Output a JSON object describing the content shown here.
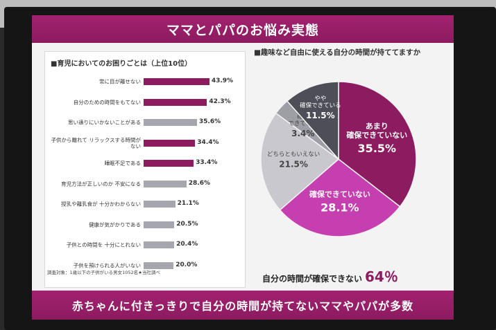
{
  "slide": {
    "title": "ママとパパのお悩み実態",
    "banner": "赤ちゃんに付きっきりで自分の時間が持てないママやパパが多数"
  },
  "left_panel": {
    "title": "■育児においてのお困りごとは（上位10位）",
    "note": "調査対象：1歳以下の子供がいる男女1052名★当社調べ"
  },
  "right_panel": {
    "title": "■趣味など自由に使える自分の時間が持ててますか",
    "summary_label": "自分の時間が確保できない",
    "summary_value": "64％"
  },
  "colors": {
    "brand": "#8c1b60",
    "magenta": "#c63fb0",
    "light_gray": "#c8c8ce",
    "mid_gray": "#9e9ea6",
    "dark_gray": "#4e4e58"
  },
  "chart_data": [
    {
      "type": "bar",
      "orientation": "horizontal",
      "title": "育児においてのお困りごとは（上位10位）",
      "categories": [
        "常に目が離せない",
        "自分のための時間をもてない",
        "思い通りにいかないことがある",
        "子供から離れて リラックスする時間がない",
        "睡眠不足である",
        "育児方法が正しいのか 不安になる",
        "授乳や離乳食が 十分かわからない",
        "健康が気がかりである",
        "子供との時間を 十分にとれない",
        "子供を預けられる人がいない"
      ],
      "values": [
        43.9,
        42.3,
        35.6,
        34.4,
        33.4,
        28.6,
        21.1,
        20.5,
        20.4,
        20.0
      ],
      "value_labels": [
        "43.9%",
        "42.3%",
        "35.6%",
        "34.4%",
        "33.4%",
        "28.6%",
        "21.1%",
        "20.5%",
        "20.4%",
        "20.0%"
      ],
      "highlight": [
        true,
        true,
        false,
        true,
        true,
        false,
        false,
        false,
        false,
        false
      ],
      "xlim": [
        0,
        50
      ]
    },
    {
      "type": "pie",
      "title": "趣味など自由に使える自分の時間が持ててますか",
      "slices": [
        {
          "label": "あまり 確保できていない",
          "value": 35.5,
          "value_label": "35.5%",
          "color": "#8c1b60"
        },
        {
          "label": "確保できていない",
          "value": 28.1,
          "value_label": "28.1%",
          "color": "#c63fb0"
        },
        {
          "label": "どちらともいえない",
          "value": 21.5,
          "value_label": "21.5%",
          "color": "#c8c8ce"
        },
        {
          "label": "確保 できている",
          "value": 3.4,
          "value_label": "3.4%",
          "color": "#9e9ea6"
        },
        {
          "label": "やや 確保できている",
          "value": 11.5,
          "value_label": "11.5%",
          "color": "#4e4e58"
        }
      ]
    }
  ]
}
